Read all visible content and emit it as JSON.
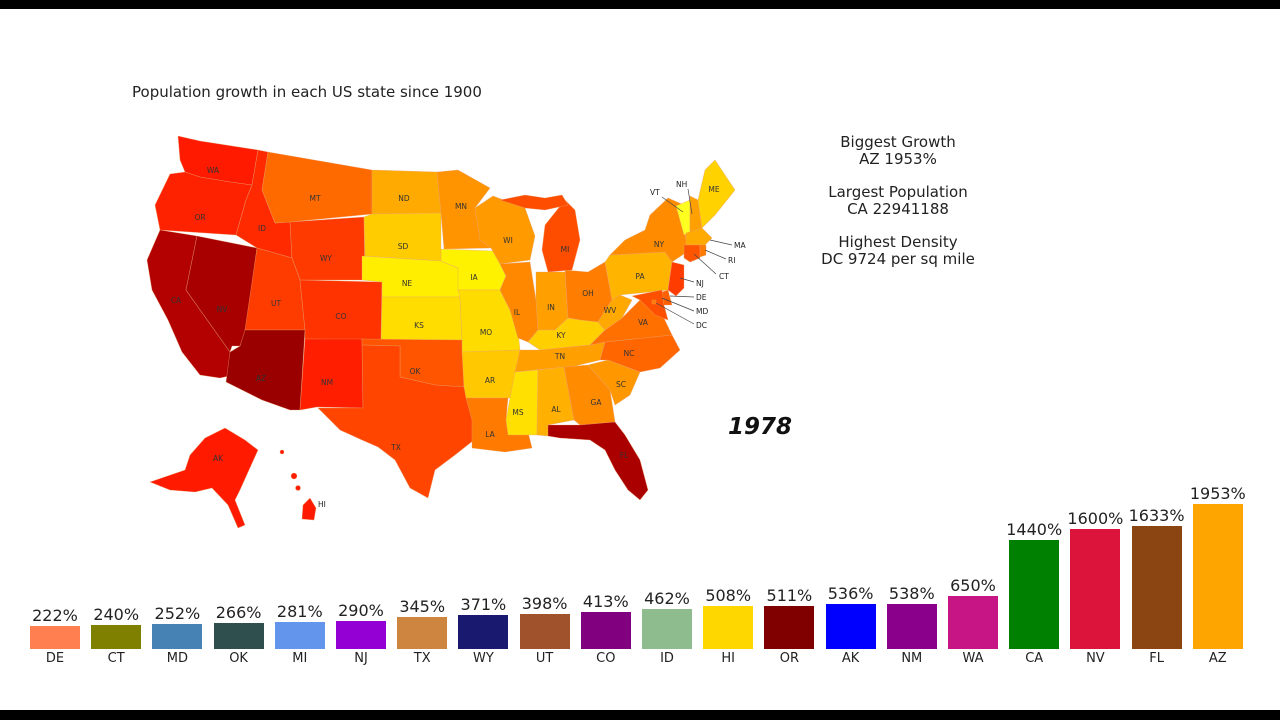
{
  "title": "Population growth in each US state since 1900",
  "year": "1978",
  "stats": {
    "biggest_growth_label": "Biggest Growth",
    "biggest_growth_value": "AZ 1953%",
    "largest_population_label": "Largest Population",
    "largest_population_value": "CA 22941188",
    "highest_density_label": "Highest Density",
    "highest_density_value": "DC 9724 per sq mile"
  },
  "map": {
    "states": [
      {
        "id": "WA",
        "color": "#ff1a00"
      },
      {
        "id": "OR",
        "color": "#ff2200"
      },
      {
        "id": "CA",
        "color": "#b30000"
      },
      {
        "id": "ID",
        "color": "#ff2a00"
      },
      {
        "id": "NV",
        "color": "#a80000"
      },
      {
        "id": "MT",
        "color": "#ff6a00"
      },
      {
        "id": "WY",
        "color": "#ff3a00"
      },
      {
        "id": "UT",
        "color": "#ff3c00"
      },
      {
        "id": "AZ",
        "color": "#9a0000"
      },
      {
        "id": "CO",
        "color": "#ff3300"
      },
      {
        "id": "NM",
        "color": "#ff1e00"
      },
      {
        "id": "ND",
        "color": "#ffaa00"
      },
      {
        "id": "SD",
        "color": "#ffcc00"
      },
      {
        "id": "NE",
        "color": "#ffee00"
      },
      {
        "id": "KS",
        "color": "#ffdd00"
      },
      {
        "id": "OK",
        "color": "#ff5500"
      },
      {
        "id": "TX",
        "color": "#ff4500"
      },
      {
        "id": "MN",
        "color": "#ff9400"
      },
      {
        "id": "IA",
        "color": "#fff200"
      },
      {
        "id": "MO",
        "color": "#ffdc00"
      },
      {
        "id": "AR",
        "color": "#ffc800"
      },
      {
        "id": "LA",
        "color": "#ff7a00"
      },
      {
        "id": "WI",
        "color": "#ff9a00"
      },
      {
        "id": "IL",
        "color": "#ff8800"
      },
      {
        "id": "MI",
        "color": "#ff4d00"
      },
      {
        "id": "IN",
        "color": "#ffa000"
      },
      {
        "id": "OH",
        "color": "#ff7d00"
      },
      {
        "id": "KY",
        "color": "#ffcf00"
      },
      {
        "id": "TN",
        "color": "#ff9f00"
      },
      {
        "id": "MS",
        "color": "#ffe000"
      },
      {
        "id": "AL",
        "color": "#ffb000"
      },
      {
        "id": "GA",
        "color": "#ff8c00"
      },
      {
        "id": "FL",
        "color": "#aa0000"
      },
      {
        "id": "SC",
        "color": "#ff9800"
      },
      {
        "id": "NC",
        "color": "#ff6600"
      },
      {
        "id": "VA",
        "color": "#ff7000"
      },
      {
        "id": "WV",
        "color": "#ffa800"
      },
      {
        "id": "PA",
        "color": "#ffb400"
      },
      {
        "id": "NY",
        "color": "#ff8c00"
      },
      {
        "id": "VT",
        "color": "#ffff20"
      },
      {
        "id": "NH",
        "color": "#ffa000"
      },
      {
        "id": "ME",
        "color": "#ffd200"
      },
      {
        "id": "MA",
        "color": "#ffaa00"
      },
      {
        "id": "RI",
        "color": "#ff7a00"
      },
      {
        "id": "CT",
        "color": "#ff5500"
      },
      {
        "id": "NJ",
        "color": "#ff3c00"
      },
      {
        "id": "DE",
        "color": "#ff6000"
      },
      {
        "id": "MD",
        "color": "#ff5000"
      },
      {
        "id": "DC",
        "color": "#ff7a00"
      },
      {
        "id": "AK",
        "color": "#ff1a00"
      },
      {
        "id": "HI",
        "color": "#ff1a00"
      }
    ],
    "callouts": [
      "VT",
      "NH",
      "MA",
      "RI",
      "CT",
      "NJ",
      "DE",
      "MD",
      "DC"
    ]
  },
  "chart_data": {
    "type": "bar",
    "title": "Population growth in each US state since 1900",
    "subtitle": "1978",
    "xlabel": "",
    "ylabel": "",
    "grid": false,
    "categories": [
      "DE",
      "CT",
      "MD",
      "OK",
      "MI",
      "NJ",
      "TX",
      "WY",
      "UT",
      "CO",
      "ID",
      "HI",
      "OR",
      "AK",
      "NM",
      "WA",
      "CA",
      "NV",
      "FL",
      "AZ"
    ],
    "values": [
      222,
      240,
      252,
      266,
      281,
      290,
      345,
      371,
      398,
      413,
      462,
      508,
      511,
      536,
      538,
      650,
      1440,
      1600,
      1633,
      1953
    ],
    "value_labels": [
      "222%",
      "240%",
      "252%",
      "266%",
      "281%",
      "290%",
      "345%",
      "371%",
      "398%",
      "413%",
      "462%",
      "508%",
      "511%",
      "536%",
      "538%",
      "650%",
      "1440%",
      "1600%",
      "1633%",
      "1953%"
    ],
    "colors": [
      "#ff7f50",
      "#808000",
      "#4682b4",
      "#2f4f4f",
      "#6495ed",
      "#9400d3",
      "#cd853f",
      "#191970",
      "#a0522d",
      "#800080",
      "#8fbc8f",
      "#ffd700",
      "#800000",
      "#0000ff",
      "#8b008b",
      "#c71585",
      "#008000",
      "#dc143c",
      "#8b4513",
      "#ffa500"
    ],
    "unit": "%"
  }
}
